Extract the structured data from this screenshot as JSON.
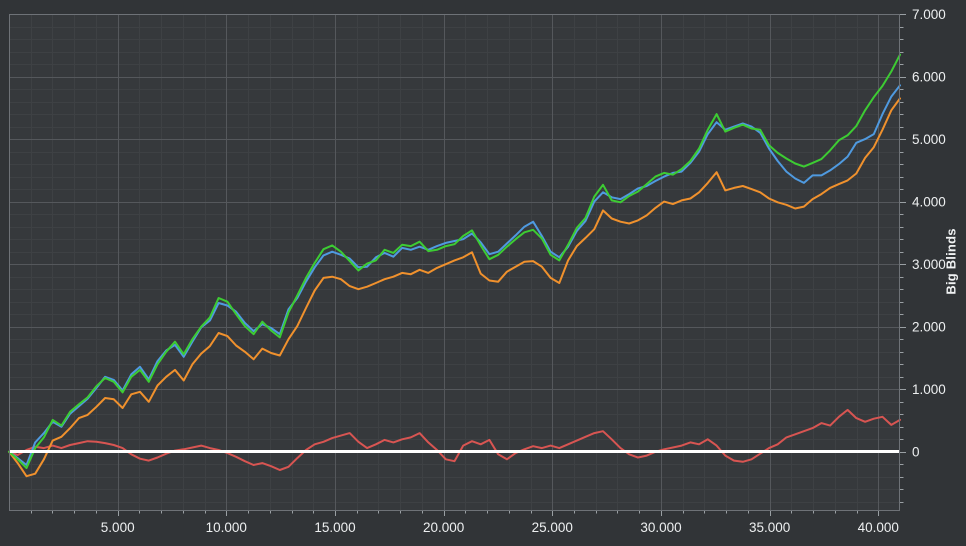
{
  "window": {
    "outer_background": "#313437",
    "plot_background": "#36393c"
  },
  "chart_data": {
    "type": "line",
    "title": "",
    "xlabel": "",
    "ylabel": "Big Blinds",
    "x_unit": "hands",
    "xlim": [
      0,
      41000
    ],
    "ylim": [
      -930,
      7000
    ],
    "grid": {
      "shown": true,
      "x_minor_step": 1000,
      "x_major_step": 5000,
      "y_minor_step": 200,
      "y_major_step": 1000,
      "minor_color": "#3e4144",
      "major_color": "#55585c",
      "border_color": "#6e7277"
    },
    "tick_label_color": "#edeff0",
    "tick_color": "#9aa0a4",
    "zero_line": {
      "value": 0,
      "color": "#ffffff",
      "width": 3
    },
    "xticks": [
      {
        "value": 5000,
        "label": "5.000"
      },
      {
        "value": 10000,
        "label": "10.000"
      },
      {
        "value": 15000,
        "label": "15.000"
      },
      {
        "value": 20000,
        "label": "20.000"
      },
      {
        "value": 25000,
        "label": "25.000"
      },
      {
        "value": 30000,
        "label": "30.000"
      },
      {
        "value": 35000,
        "label": "35.000"
      },
      {
        "value": 40000,
        "label": "40.000"
      }
    ],
    "yticks": [
      {
        "value": 0,
        "label": "0"
      },
      {
        "value": 1000,
        "label": "1.000"
      },
      {
        "value": 2000,
        "label": "2.000"
      },
      {
        "value": 3000,
        "label": "3.000"
      },
      {
        "value": 4000,
        "label": "4.000"
      },
      {
        "value": 5000,
        "label": "5.000"
      },
      {
        "value": 6000,
        "label": "6.000"
      },
      {
        "value": 7000,
        "label": "7.000"
      }
    ],
    "series_x": {
      "start": 0,
      "end": 41000,
      "spacing": "even"
    },
    "series": [
      {
        "name": "red-line",
        "color": "#d85552",
        "width": 2,
        "values": [
          0,
          -50,
          30,
          80,
          60,
          100,
          60,
          110,
          140,
          170,
          160,
          140,
          110,
          60,
          -40,
          -110,
          -140,
          -90,
          -30,
          20,
          40,
          70,
          100,
          60,
          30,
          -20,
          -80,
          -150,
          -210,
          -180,
          -230,
          -290,
          -240,
          -100,
          30,
          120,
          160,
          220,
          260,
          300,
          160,
          60,
          120,
          190,
          150,
          200,
          230,
          300,
          150,
          30,
          -120,
          -150,
          100,
          170,
          120,
          190,
          -40,
          -120,
          -20,
          40,
          90,
          60,
          100,
          60,
          120,
          180,
          240,
          300,
          330,
          200,
          60,
          -40,
          -90,
          -60,
          0,
          40,
          70,
          100,
          150,
          120,
          200,
          100,
          -60,
          -140,
          -160,
          -120,
          -30,
          60,
          120,
          230,
          280,
          330,
          380,
          460,
          420,
          560,
          670,
          540,
          480,
          530,
          560,
          430,
          510
        ]
      },
      {
        "name": "blue-line",
        "color": "#4f9ae0",
        "width": 2,
        "values": [
          0,
          -100,
          -210,
          150,
          300,
          480,
          400,
          610,
          730,
          850,
          1020,
          1200,
          1150,
          980,
          1240,
          1360,
          1160,
          1450,
          1620,
          1710,
          1520,
          1760,
          1990,
          2100,
          2380,
          2340,
          2240,
          2060,
          1930,
          2040,
          1980,
          1880,
          2280,
          2460,
          2720,
          2950,
          3140,
          3200,
          3150,
          3090,
          2950,
          2960,
          3110,
          3180,
          3120,
          3260,
          3230,
          3280,
          3230,
          3290,
          3340,
          3370,
          3400,
          3490,
          3350,
          3160,
          3200,
          3330,
          3460,
          3600,
          3680,
          3450,
          3200,
          3110,
          3280,
          3530,
          3690,
          4000,
          4150,
          4070,
          4040,
          4120,
          4210,
          4250,
          4330,
          4400,
          4460,
          4480,
          4620,
          4800,
          5080,
          5270,
          5150,
          5200,
          5250,
          5200,
          5100,
          4850,
          4650,
          4480,
          4370,
          4300,
          4420,
          4420,
          4500,
          4600,
          4720,
          4940,
          5000,
          5080,
          5400,
          5680,
          5860
        ]
      },
      {
        "name": "orange-line",
        "color": "#f0912d",
        "width": 2,
        "values": [
          0,
          -180,
          -390,
          -350,
          -120,
          180,
          240,
          380,
          540,
          590,
          720,
          860,
          840,
          700,
          920,
          960,
          800,
          1060,
          1200,
          1310,
          1140,
          1400,
          1570,
          1690,
          1900,
          1850,
          1700,
          1600,
          1480,
          1650,
          1580,
          1540,
          1800,
          2010,
          2300,
          2580,
          2780,
          2800,
          2760,
          2650,
          2600,
          2640,
          2700,
          2760,
          2800,
          2860,
          2840,
          2910,
          2860,
          2940,
          3000,
          3060,
          3110,
          3190,
          2850,
          2740,
          2720,
          2880,
          2960,
          3040,
          3050,
          2960,
          2780,
          2700,
          3060,
          3290,
          3420,
          3560,
          3860,
          3730,
          3680,
          3650,
          3700,
          3780,
          3900,
          4000,
          3960,
          4020,
          4050,
          4150,
          4300,
          4470,
          4180,
          4220,
          4250,
          4200,
          4150,
          4050,
          3990,
          3950,
          3890,
          3920,
          4040,
          4120,
          4220,
          4280,
          4340,
          4450,
          4700,
          4870,
          5150,
          5460,
          5650
        ]
      },
      {
        "name": "green-line",
        "color": "#3dcc33",
        "width": 2,
        "values": [
          0,
          -120,
          -260,
          60,
          230,
          510,
          420,
          640,
          760,
          870,
          1050,
          1180,
          1120,
          950,
          1200,
          1310,
          1120,
          1400,
          1600,
          1760,
          1560,
          1800,
          2000,
          2150,
          2460,
          2400,
          2200,
          2010,
          1880,
          2080,
          1940,
          1830,
          2230,
          2500,
          2780,
          3020,
          3240,
          3300,
          3200,
          3050,
          2900,
          3010,
          3060,
          3230,
          3180,
          3310,
          3290,
          3360,
          3210,
          3230,
          3290,
          3320,
          3450,
          3540,
          3300,
          3080,
          3150,
          3280,
          3400,
          3510,
          3550,
          3410,
          3150,
          3060,
          3310,
          3580,
          3740,
          4080,
          4270,
          4020,
          3990,
          4090,
          4160,
          4280,
          4400,
          4460,
          4430,
          4520,
          4650,
          4850,
          5150,
          5400,
          5120,
          5180,
          5230,
          5170,
          5150,
          4900,
          4780,
          4690,
          4610,
          4560,
          4620,
          4680,
          4820,
          4980,
          5060,
          5210,
          5460,
          5670,
          5850,
          6080,
          6350
        ]
      }
    ]
  }
}
